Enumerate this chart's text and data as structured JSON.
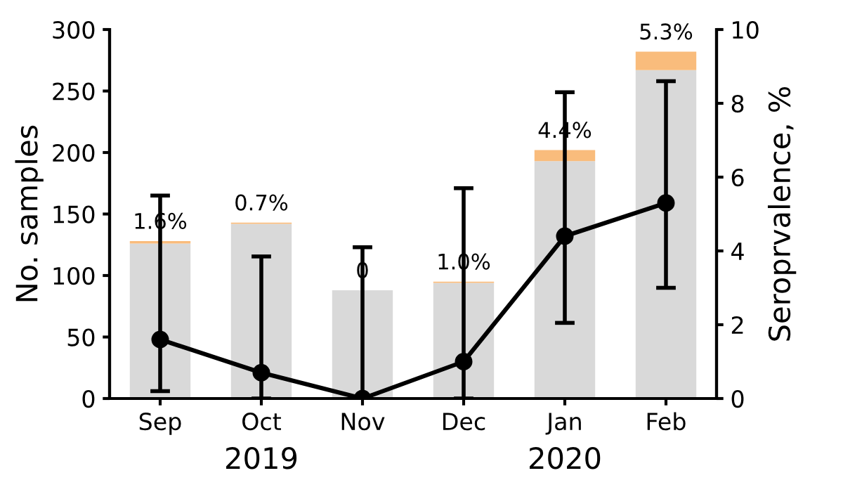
{
  "chart_data": {
    "type": "bar",
    "stacked": true,
    "categories": [
      "Sep",
      "Oct",
      "Nov",
      "Dec",
      "Jan",
      "Feb"
    ],
    "series": [
      {
        "color": "#d9d9d9",
        "values": [
          126,
          142,
          88,
          94,
          193,
          267
        ]
      },
      {
        "color": "#f9bc7c",
        "values": [
          2,
          1,
          0,
          1,
          9,
          15
        ]
      },
      {
        "type": "line",
        "axis": "y2",
        "color": "#000000",
        "marker": "circle",
        "line_style": "solid",
        "values": [
          1.6,
          0.7,
          0,
          1.0,
          4.4,
          5.3
        ],
        "errors": [
          [
            0.2,
            5.5
          ],
          [
            0,
            3.85
          ],
          [
            0,
            4.1
          ],
          [
            0,
            5.7
          ],
          [
            2.05,
            8.3
          ],
          [
            3.0,
            8.6
          ]
        ]
      }
    ],
    "ylabel": "No. samples",
    "y2label": "Seroprvalence, %",
    "ylim": [
      0,
      300
    ],
    "yticks": [
      0,
      50,
      100,
      150,
      200,
      250,
      300
    ],
    "y2lim": [
      0,
      10
    ],
    "y2ticks": [
      0,
      2,
      4,
      6,
      8,
      10
    ],
    "annotations": [
      "2019",
      "2020",
      {
        "text": "1.6%",
        "x": "Sep",
        "y": 128
      },
      {
        "text": "0.7%",
        "x": "Oct",
        "y": 143
      },
      {
        "text": "0",
        "x": "Nov",
        "y": 88
      },
      {
        "text": "1.0%",
        "x": "Dec",
        "y": 95
      },
      {
        "text": "4.4%",
        "x": "Jan",
        "y": 202
      },
      {
        "text": "5.3%",
        "x": "Feb",
        "y": 282
      }
    ],
    "grid": false,
    "legend": false
  }
}
